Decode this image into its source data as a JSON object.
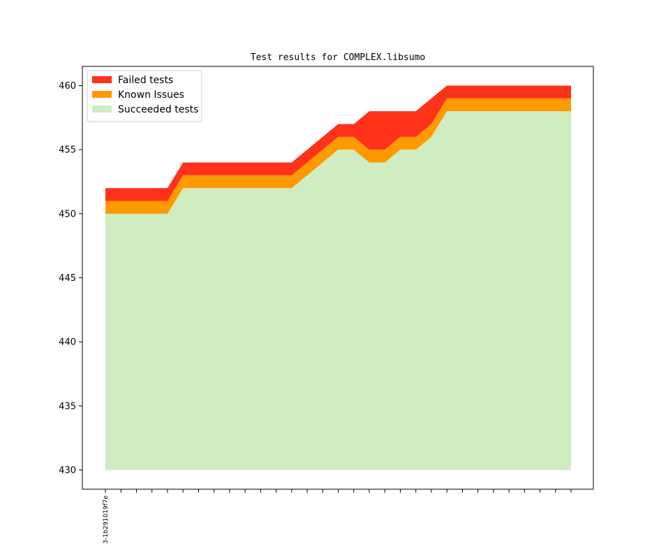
{
  "chart_data": {
    "type": "area",
    "title": "Test results for COMPLEX.libsumo",
    "xlabel": "",
    "ylabel": "",
    "ylim": [
      428.5,
      461.5
    ],
    "yticks": [
      430,
      435,
      440,
      445,
      450,
      455,
      460
    ],
    "baseline": 430,
    "x_count": 31,
    "x_tick_labels": [
      {
        "index": 0,
        "label": "3-1b291019f7e"
      }
    ],
    "legend_position": "top-left",
    "series": [
      {
        "name": "Succeeded tests",
        "color": "#cfedc0",
        "values": [
          450,
          450,
          450,
          450,
          450,
          452,
          452,
          452,
          452,
          452,
          452,
          452,
          452,
          453,
          454,
          455,
          455,
          454,
          454,
          455,
          455,
          456,
          458,
          458,
          458,
          458,
          458,
          458,
          458,
          458,
          458
        ]
      },
      {
        "name": "Known Issues",
        "color": "#ff9900",
        "values": [
          1,
          1,
          1,
          1,
          1,
          1,
          1,
          1,
          1,
          1,
          1,
          1,
          1,
          1,
          1,
          1,
          1,
          1,
          1,
          1,
          1,
          1,
          1,
          1,
          1,
          1,
          1,
          1,
          1,
          1,
          1
        ]
      },
      {
        "name": "Failed tests",
        "color": "#ff321b",
        "values": [
          1,
          1,
          1,
          1,
          1,
          1,
          1,
          1,
          1,
          1,
          1,
          1,
          1,
          1,
          1,
          1,
          1,
          3,
          3,
          2,
          2,
          2,
          1,
          1,
          1,
          1,
          1,
          1,
          1,
          1,
          1
        ]
      }
    ]
  }
}
